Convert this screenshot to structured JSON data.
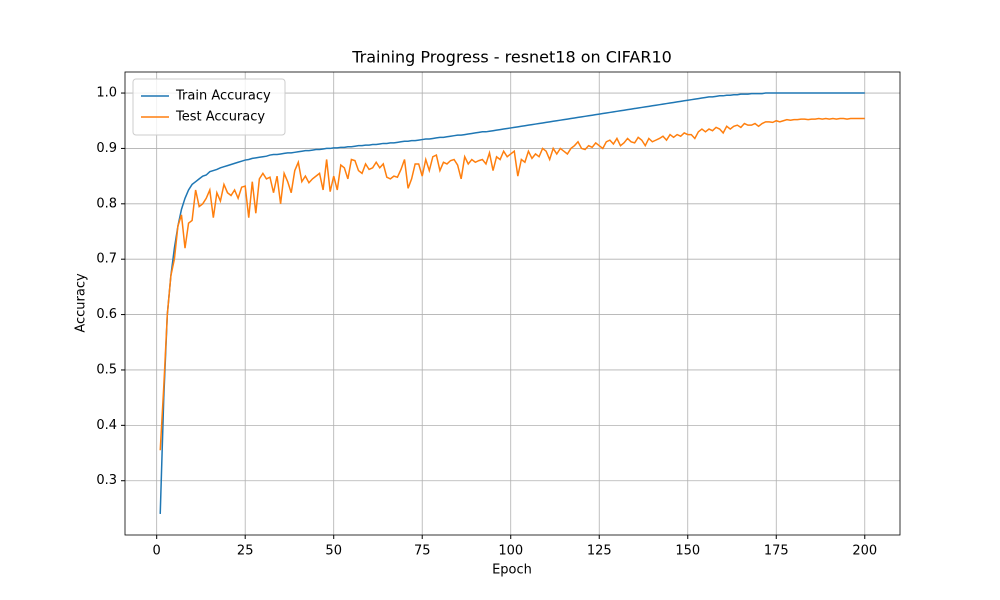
{
  "chart_data": {
    "type": "line",
    "title": "Training Progress - resnet18 on CIFAR10",
    "xlabel": "Epoch",
    "ylabel": "Accuracy",
    "x": [
      1,
      2,
      3,
      4,
      5,
      6,
      7,
      8,
      9,
      10,
      11,
      12,
      13,
      14,
      15,
      16,
      17,
      18,
      19,
      20,
      21,
      22,
      23,
      24,
      25,
      26,
      27,
      28,
      29,
      30,
      31,
      32,
      33,
      34,
      35,
      36,
      37,
      38,
      39,
      40,
      41,
      42,
      43,
      44,
      45,
      46,
      47,
      48,
      49,
      50,
      51,
      52,
      53,
      54,
      55,
      56,
      57,
      58,
      59,
      60,
      61,
      62,
      63,
      64,
      65,
      66,
      67,
      68,
      69,
      70,
      71,
      72,
      73,
      74,
      75,
      76,
      77,
      78,
      79,
      80,
      81,
      82,
      83,
      84,
      85,
      86,
      87,
      88,
      89,
      90,
      91,
      92,
      93,
      94,
      95,
      96,
      97,
      98,
      99,
      100,
      101,
      102,
      103,
      104,
      105,
      106,
      107,
      108,
      109,
      110,
      111,
      112,
      113,
      114,
      115,
      116,
      117,
      118,
      119,
      120,
      121,
      122,
      123,
      124,
      125,
      126,
      127,
      128,
      129,
      130,
      131,
      132,
      133,
      134,
      135,
      136,
      137,
      138,
      139,
      140,
      141,
      142,
      143,
      144,
      145,
      146,
      147,
      148,
      149,
      150,
      151,
      152,
      153,
      154,
      155,
      156,
      157,
      158,
      159,
      160,
      161,
      162,
      163,
      164,
      165,
      166,
      167,
      168,
      169,
      170,
      171,
      172,
      173,
      174,
      175,
      176,
      177,
      178,
      179,
      180,
      181,
      182,
      183,
      184,
      185,
      186,
      187,
      188,
      189,
      190,
      191,
      192,
      193,
      194,
      195,
      196,
      197,
      198,
      199,
      200
    ],
    "series": [
      {
        "name": "Train Accuracy",
        "color": "#1f77b4",
        "values": [
          0.24,
          0.45,
          0.6,
          0.67,
          0.72,
          0.76,
          0.79,
          0.81,
          0.825,
          0.835,
          0.84,
          0.845,
          0.85,
          0.852,
          0.858,
          0.86,
          0.862,
          0.865,
          0.867,
          0.869,
          0.871,
          0.873,
          0.875,
          0.877,
          0.879,
          0.88,
          0.882,
          0.883,
          0.884,
          0.885,
          0.886,
          0.888,
          0.889,
          0.889,
          0.89,
          0.891,
          0.892,
          0.892,
          0.893,
          0.894,
          0.895,
          0.896,
          0.896,
          0.897,
          0.898,
          0.898,
          0.899,
          0.9,
          0.9,
          0.901,
          0.901,
          0.902,
          0.902,
          0.903,
          0.903,
          0.904,
          0.905,
          0.905,
          0.906,
          0.906,
          0.907,
          0.907,
          0.908,
          0.909,
          0.909,
          0.91,
          0.91,
          0.911,
          0.912,
          0.913,
          0.913,
          0.914,
          0.914,
          0.915,
          0.916,
          0.917,
          0.917,
          0.918,
          0.919,
          0.92,
          0.92,
          0.921,
          0.922,
          0.923,
          0.924,
          0.924,
          0.925,
          0.926,
          0.927,
          0.928,
          0.929,
          0.93,
          0.93,
          0.931,
          0.932,
          0.933,
          0.934,
          0.935,
          0.936,
          0.937,
          0.938,
          0.939,
          0.94,
          0.941,
          0.942,
          0.943,
          0.944,
          0.945,
          0.946,
          0.947,
          0.948,
          0.949,
          0.95,
          0.951,
          0.952,
          0.953,
          0.954,
          0.955,
          0.956,
          0.957,
          0.958,
          0.959,
          0.96,
          0.961,
          0.962,
          0.963,
          0.964,
          0.965,
          0.966,
          0.967,
          0.968,
          0.969,
          0.97,
          0.971,
          0.972,
          0.973,
          0.974,
          0.975,
          0.976,
          0.977,
          0.978,
          0.979,
          0.98,
          0.981,
          0.982,
          0.983,
          0.984,
          0.985,
          0.986,
          0.987,
          0.988,
          0.989,
          0.99,
          0.991,
          0.992,
          0.993,
          0.993,
          0.994,
          0.995,
          0.995,
          0.996,
          0.996,
          0.997,
          0.997,
          0.998,
          0.998,
          0.998,
          0.999,
          0.999,
          0.999,
          0.999,
          1.0,
          1.0,
          1.0,
          1.0,
          1.0,
          1.0,
          1.0,
          1.0,
          1.0,
          1.0,
          1.0,
          1.0,
          1.0,
          1.0,
          1.0,
          1.0,
          1.0,
          1.0,
          1.0,
          1.0,
          1.0,
          1.0,
          1.0,
          1.0,
          1.0,
          1.0,
          1.0,
          1.0,
          1.0
        ]
      },
      {
        "name": "Test Accuracy",
        "color": "#ff7f0e",
        "values": [
          0.355,
          0.47,
          0.6,
          0.67,
          0.7,
          0.76,
          0.78,
          0.72,
          0.765,
          0.77,
          0.825,
          0.795,
          0.8,
          0.81,
          0.825,
          0.775,
          0.82,
          0.805,
          0.835,
          0.82,
          0.815,
          0.825,
          0.81,
          0.83,
          0.832,
          0.775,
          0.84,
          0.783,
          0.845,
          0.855,
          0.845,
          0.848,
          0.82,
          0.85,
          0.8,
          0.855,
          0.84,
          0.82,
          0.86,
          0.875,
          0.84,
          0.85,
          0.838,
          0.845,
          0.85,
          0.855,
          0.825,
          0.88,
          0.822,
          0.85,
          0.825,
          0.87,
          0.865,
          0.845,
          0.88,
          0.878,
          0.86,
          0.855,
          0.872,
          0.862,
          0.865,
          0.875,
          0.865,
          0.872,
          0.848,
          0.845,
          0.85,
          0.848,
          0.862,
          0.88,
          0.828,
          0.845,
          0.872,
          0.872,
          0.85,
          0.88,
          0.86,
          0.885,
          0.888,
          0.86,
          0.875,
          0.872,
          0.878,
          0.88,
          0.87,
          0.845,
          0.885,
          0.872,
          0.88,
          0.875,
          0.878,
          0.88,
          0.872,
          0.892,
          0.86,
          0.885,
          0.88,
          0.895,
          0.885,
          0.89,
          0.895,
          0.85,
          0.88,
          0.875,
          0.895,
          0.882,
          0.89,
          0.885,
          0.9,
          0.895,
          0.88,
          0.9,
          0.89,
          0.9,
          0.895,
          0.89,
          0.9,
          0.905,
          0.912,
          0.9,
          0.898,
          0.905,
          0.902,
          0.91,
          0.905,
          0.9,
          0.912,
          0.915,
          0.908,
          0.918,
          0.905,
          0.91,
          0.918,
          0.912,
          0.91,
          0.92,
          0.915,
          0.905,
          0.918,
          0.912,
          0.915,
          0.918,
          0.922,
          0.915,
          0.925,
          0.92,
          0.925,
          0.922,
          0.928,
          0.925,
          0.925,
          0.918,
          0.93,
          0.935,
          0.93,
          0.935,
          0.932,
          0.938,
          0.935,
          0.928,
          0.94,
          0.935,
          0.94,
          0.942,
          0.938,
          0.945,
          0.942,
          0.942,
          0.945,
          0.94,
          0.945,
          0.948,
          0.948,
          0.947,
          0.95,
          0.948,
          0.95,
          0.952,
          0.951,
          0.952,
          0.952,
          0.953,
          0.953,
          0.952,
          0.953,
          0.953,
          0.954,
          0.953,
          0.954,
          0.953,
          0.954,
          0.953,
          0.954,
          0.954,
          0.953,
          0.954,
          0.954,
          0.954,
          0.954,
          0.954
        ]
      }
    ],
    "xlim": [
      -8.95,
      209.95
    ],
    "xticks": [
      0,
      25,
      50,
      75,
      100,
      125,
      150,
      175,
      200
    ],
    "ylim": [
      0.202,
      1.038
    ],
    "yticks": [
      0.3,
      0.4,
      0.5,
      0.6,
      0.7,
      0.8,
      0.9,
      {
        "value": 1,
        "label": "1.0"
      }
    ],
    "grid": true,
    "legend": "upper left"
  }
}
